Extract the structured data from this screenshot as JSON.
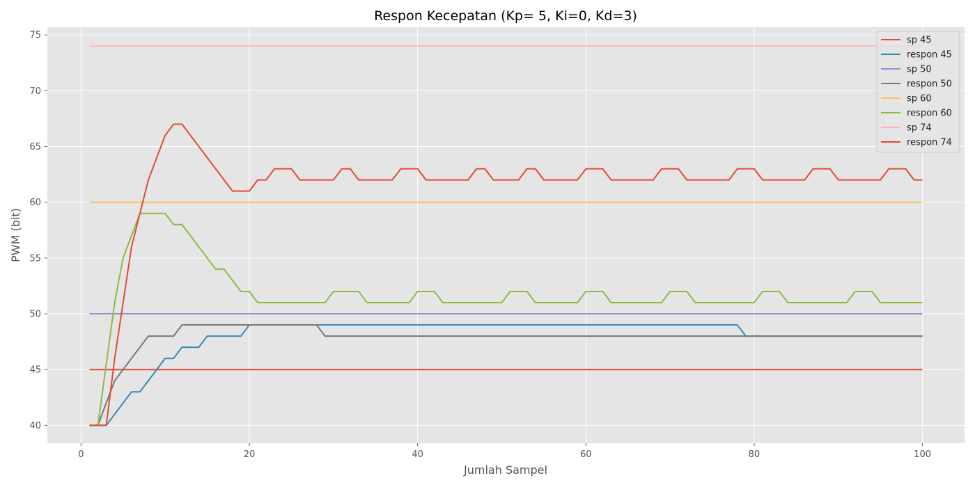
{
  "chart_data": {
    "type": "line",
    "title": "Respon Kecepatan (Kp= 5, Ki=0, Kd=3)",
    "xlabel": "Jumlah Sampel",
    "ylabel": "PWM (bit)",
    "xlim": [
      -4,
      105
    ],
    "ylim": [
      38.4,
      75.7
    ],
    "xticks": [
      0,
      20,
      40,
      60,
      80,
      100
    ],
    "yticks": [
      40,
      45,
      50,
      55,
      60,
      65,
      70,
      75
    ],
    "grid": true,
    "legend_position": "top-right",
    "x_range": [
      1,
      100
    ],
    "series": [
      {
        "name": "sp 45",
        "color": "#E24A33",
        "constant": 45
      },
      {
        "name": "respon 45",
        "color": "#348ABD",
        "segments": [
          [
            1,
            40
          ],
          [
            3,
            40
          ],
          [
            6,
            43
          ],
          [
            7,
            43
          ],
          [
            10,
            46
          ],
          [
            11,
            46
          ],
          [
            12,
            47
          ],
          [
            14,
            47
          ],
          [
            15,
            48
          ],
          [
            19,
            48
          ],
          [
            20,
            49
          ],
          [
            78,
            49
          ],
          [
            79,
            48
          ],
          [
            100,
            48
          ]
        ]
      },
      {
        "name": "sp 50",
        "color": "#988ED5",
        "constant": 50
      },
      {
        "name": "respon 50",
        "color": "#777777",
        "segments": [
          [
            1,
            40
          ],
          [
            2,
            40
          ],
          [
            4,
            44
          ],
          [
            8,
            48
          ],
          [
            11,
            48
          ],
          [
            12,
            49
          ],
          [
            28,
            49
          ],
          [
            29,
            48
          ],
          [
            100,
            48
          ]
        ]
      },
      {
        "name": "sp 60",
        "color": "#FBC15E",
        "constant": 60
      },
      {
        "name": "respon 60",
        "color": "#8EBA42",
        "segments": [
          [
            1,
            40
          ],
          [
            2,
            40
          ],
          [
            4,
            51
          ],
          [
            5,
            55
          ],
          [
            7,
            59
          ],
          [
            10,
            59
          ],
          [
            11,
            58
          ],
          [
            12,
            58
          ],
          [
            16,
            54
          ],
          [
            17,
            54
          ],
          [
            19,
            52
          ],
          [
            20,
            52
          ],
          [
            21,
            51
          ],
          [
            29,
            51
          ],
          [
            30,
            52
          ],
          [
            33,
            52
          ],
          [
            34,
            51
          ],
          [
            39,
            51
          ],
          [
            40,
            52
          ],
          [
            42,
            52
          ],
          [
            43,
            51
          ],
          [
            50,
            51
          ],
          [
            51,
            52
          ],
          [
            53,
            52
          ],
          [
            54,
            51
          ],
          [
            59,
            51
          ],
          [
            60,
            52
          ],
          [
            62,
            52
          ],
          [
            63,
            51
          ],
          [
            69,
            51
          ],
          [
            70,
            52
          ],
          [
            72,
            52
          ],
          [
            73,
            51
          ],
          [
            80,
            51
          ],
          [
            81,
            52
          ],
          [
            83,
            52
          ],
          [
            84,
            51
          ],
          [
            91,
            51
          ],
          [
            92,
            52
          ],
          [
            94,
            52
          ],
          [
            95,
            51
          ],
          [
            100,
            51
          ]
        ]
      },
      {
        "name": "sp 74",
        "color": "#FFB5B8",
        "constant": 74
      },
      {
        "name": "respon 74",
        "color": "#E24A33",
        "segments": [
          [
            1,
            40
          ],
          [
            3,
            40
          ],
          [
            4,
            46
          ],
          [
            6,
            56
          ],
          [
            8,
            62
          ],
          [
            10,
            66
          ],
          [
            11,
            67
          ],
          [
            12,
            67
          ],
          [
            18,
            61
          ],
          [
            20,
            61
          ],
          [
            21,
            62
          ],
          [
            22,
            62
          ],
          [
            23,
            63
          ],
          [
            25,
            63
          ],
          [
            26,
            62
          ],
          [
            30,
            62
          ],
          [
            31,
            63
          ],
          [
            32,
            63
          ],
          [
            33,
            62
          ],
          [
            37,
            62
          ],
          [
            38,
            63
          ],
          [
            40,
            63
          ],
          [
            41,
            62
          ],
          [
            46,
            62
          ],
          [
            47,
            63
          ],
          [
            48,
            63
          ],
          [
            49,
            62
          ],
          [
            52,
            62
          ],
          [
            53,
            63
          ],
          [
            54,
            63
          ],
          [
            55,
            62
          ],
          [
            59,
            62
          ],
          [
            60,
            63
          ],
          [
            62,
            63
          ],
          [
            63,
            62
          ],
          [
            68,
            62
          ],
          [
            69,
            63
          ],
          [
            71,
            63
          ],
          [
            72,
            62
          ],
          [
            77,
            62
          ],
          [
            78,
            63
          ],
          [
            80,
            63
          ],
          [
            81,
            62
          ],
          [
            86,
            62
          ],
          [
            87,
            63
          ],
          [
            89,
            63
          ],
          [
            90,
            62
          ],
          [
            95,
            62
          ],
          [
            96,
            63
          ],
          [
            98,
            63
          ],
          [
            99,
            62
          ],
          [
            100,
            62
          ]
        ]
      }
    ]
  }
}
